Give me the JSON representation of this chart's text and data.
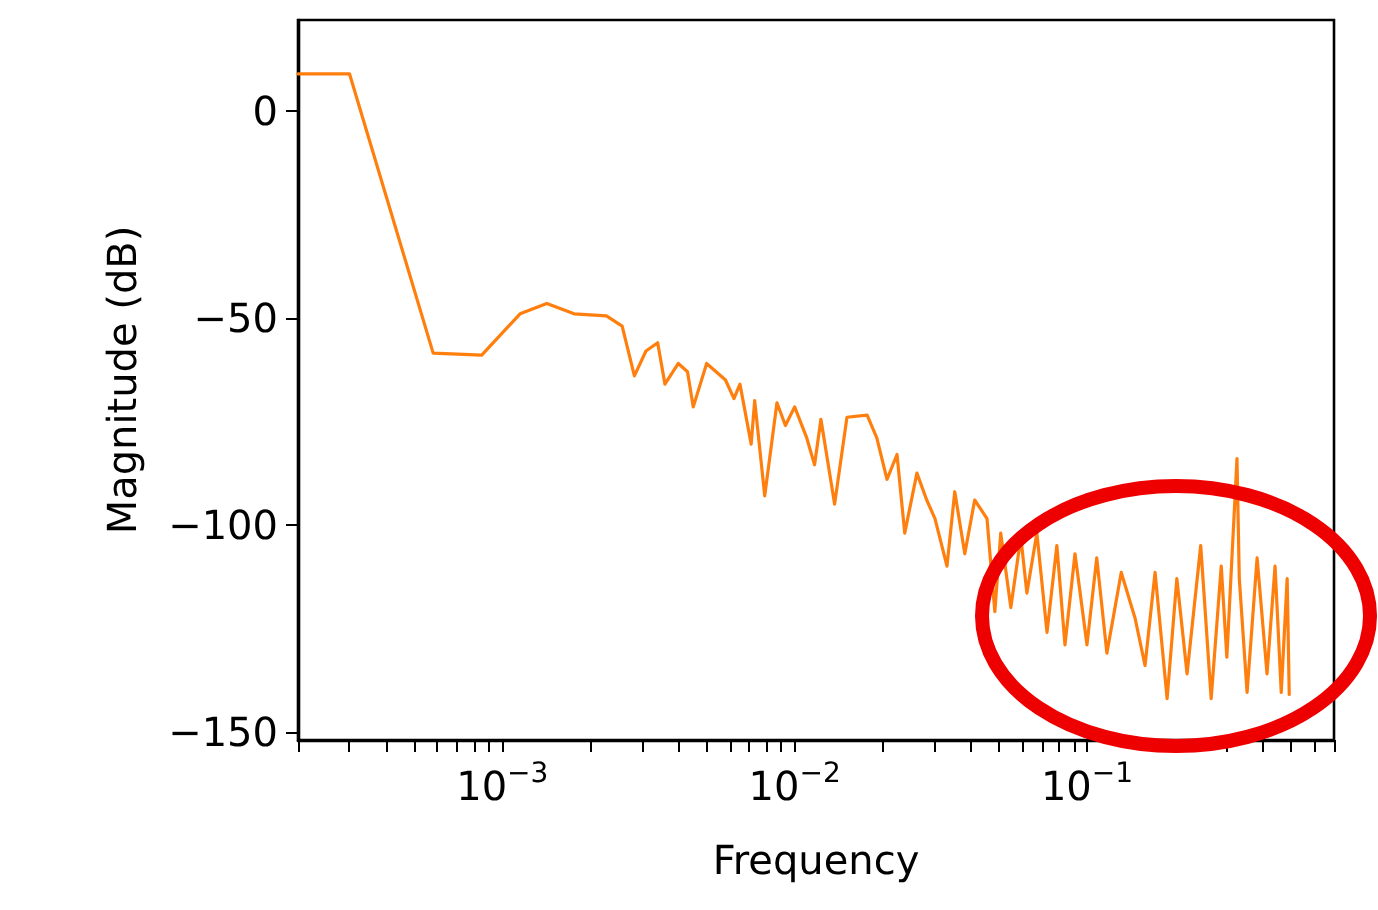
{
  "chart_data": {
    "type": "line",
    "xlabel": "Frequency",
    "ylabel": "Magnitude (dB)",
    "log": "x",
    "grid": false,
    "marker": "none",
    "line_style": "solid",
    "xlim": [
      0.0002,
      0.7
    ],
    "ylim": [
      -152,
      22
    ],
    "xticks": [
      {
        "value": 0.0002,
        "label": null
      },
      {
        "value": 0.0003,
        "label": null
      },
      {
        "value": 0.0004,
        "label": null
      },
      {
        "value": 0.0005,
        "label": null
      },
      {
        "value": 0.0006,
        "label": null
      },
      {
        "value": 0.0007,
        "label": null
      },
      {
        "value": 0.0008,
        "label": null
      },
      {
        "value": 0.0009,
        "label": null
      },
      {
        "value": 0.001,
        "label": "10$^{−3}$"
      },
      {
        "value": 0.002,
        "label": null
      },
      {
        "value": 0.003,
        "label": null
      },
      {
        "value": 0.004,
        "label": null
      },
      {
        "value": 0.005,
        "label": null
      },
      {
        "value": 0.006,
        "label": null
      },
      {
        "value": 0.007,
        "label": null
      },
      {
        "value": 0.008,
        "label": null
      },
      {
        "value": 0.009,
        "label": null
      },
      {
        "value": 0.01,
        "label": "10$^{−2}$"
      },
      {
        "value": 0.02,
        "label": null
      },
      {
        "value": 0.03,
        "label": null
      },
      {
        "value": 0.04,
        "label": null
      },
      {
        "value": 0.05,
        "label": null
      },
      {
        "value": 0.06,
        "label": null
      },
      {
        "value": 0.07,
        "label": null
      },
      {
        "value": 0.08,
        "label": null
      },
      {
        "value": 0.09,
        "label": null
      },
      {
        "value": 0.1,
        "label": "10$^{−1}$"
      },
      {
        "value": 0.2,
        "label": null
      },
      {
        "value": 0.3,
        "label": null
      },
      {
        "value": 0.4,
        "label": null
      },
      {
        "value": 0.5,
        "label": null
      },
      {
        "value": 0.6,
        "label": null
      },
      {
        "value": 0.7,
        "label": null
      }
    ],
    "yticks": [
      {
        "value": 0,
        "label": "0"
      },
      {
        "value": -50,
        "label": "−50"
      },
      {
        "value": -100,
        "label": "−100"
      },
      {
        "value": -150,
        "label": "−150"
      }
    ],
    "series": [
      {
        "color": "#ff7f0e",
        "x": [
          0.0002,
          0.0003,
          0.00058,
          0.00085,
          0.00115,
          0.00142,
          0.00176,
          0.00227,
          0.00257,
          0.00283,
          0.0031,
          0.0034,
          0.0036,
          0.004,
          0.0043,
          0.0045,
          0.005,
          0.0058,
          0.0062,
          0.0065,
          0.0071,
          0.0073,
          0.0079,
          0.0087,
          0.0093,
          0.01,
          0.011,
          0.0117,
          0.0123,
          0.0137,
          0.0151,
          0.0177,
          0.0191,
          0.0207,
          0.0224,
          0.0238,
          0.0262,
          0.0283,
          0.0302,
          0.0332,
          0.0353,
          0.0382,
          0.0413,
          0.0455,
          0.0484,
          0.0507,
          0.0549,
          0.0594,
          0.0623,
          0.0674,
          0.073,
          0.0789,
          0.0841,
          0.091,
          0.1,
          0.108,
          0.117,
          0.131,
          0.146,
          0.158,
          0.171,
          0.188,
          0.203,
          0.22,
          0.245,
          0.266,
          0.288,
          0.301,
          0.326,
          0.332,
          0.353,
          0.382,
          0.413,
          0.44,
          0.462,
          0.484,
          0.492
        ],
        "values": [
          9,
          9,
          -58.5,
          -59,
          -49,
          -46.5,
          -49,
          -49.5,
          -52,
          -64,
          -58,
          -56,
          -66,
          -61,
          -63,
          -71.5,
          -61,
          -65,
          -69.5,
          -66,
          -80.5,
          -70,
          -93,
          -70.5,
          -76,
          -71.5,
          -79,
          -85.5,
          -74.5,
          -95,
          -74,
          -73.5,
          -79,
          -89,
          -83,
          -102,
          -87.5,
          -94,
          -98.5,
          -110,
          -92,
          -107,
          -94,
          -98.5,
          -121,
          -102,
          -120,
          -103,
          -116.5,
          -102,
          -126,
          -105,
          -129,
          -107,
          -129,
          -108,
          -131,
          -111.5,
          -122.5,
          -134,
          -111.5,
          -142,
          -113,
          -136,
          -105,
          -142,
          -110,
          -132,
          -84,
          -113,
          -140.5,
          -108,
          -136,
          -110,
          -140.5,
          -113,
          -141
        ]
      }
    ]
  }
}
